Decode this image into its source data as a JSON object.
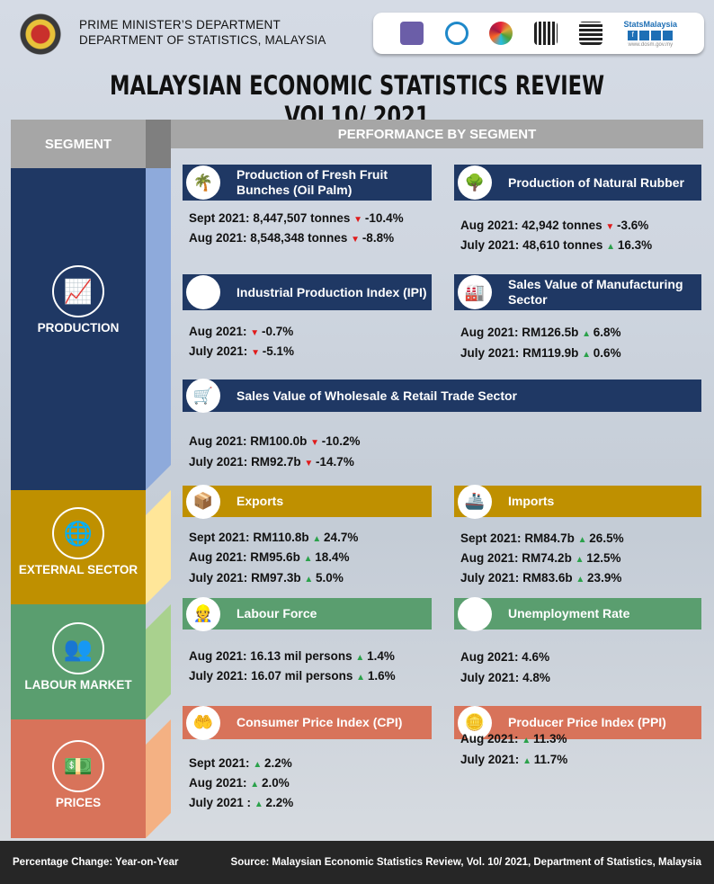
{
  "header": {
    "org_line1": "PRIME MINISTER’S DEPARTMENT",
    "org_line2": "DEPARTMENT  OF STATISTICS, MALAYSIA",
    "logo_brand": "StatsMalaysia",
    "logo_url": "www.dosm.gov.my",
    "title": "MALAYSIAN ECONOMIC STATISTICS REVIEW VOL10/ 2021"
  },
  "columns": {
    "segment": "SEGMENT",
    "performance": "PERFORMANCE BY SEGMENT"
  },
  "colors": {
    "production": "#1f3864",
    "external": "#bf9000",
    "labour": "#5a9e6f",
    "prices": "#d8735a"
  },
  "segments": [
    {
      "key": "production",
      "label": "PRODUCTION",
      "icon": "chart-icon"
    },
    {
      "key": "external",
      "label": "EXTERNAL SECTOR",
      "icon": "globe-icon"
    },
    {
      "key": "labour",
      "label": "LABOUR MARKET",
      "icon": "people-icon"
    },
    {
      "key": "prices",
      "label": "PRICES",
      "icon": "money-icon"
    }
  ],
  "cards": [
    {
      "segment": "production",
      "title": "Production of Fresh Fruit Bunches (Oil Palm)",
      "icon": "palm-tree-icon",
      "rows": [
        {
          "period": "Sept 2021:",
          "value": "8,447,507  tonnes",
          "dir": "down",
          "change": "-10.4%"
        },
        {
          "period": "Aug 2021:",
          "value": "8,548,348  tonnes",
          "dir": "down",
          "change": "-8.8%"
        }
      ]
    },
    {
      "segment": "production",
      "title": "Production of Natural Rubber",
      "icon": "rubber-tapper-icon",
      "rows": [
        {
          "period": "Aug 2021:",
          "value": "42,942  tonnes",
          "dir": "down",
          "change": "-3.6%"
        },
        {
          "period": "July 2021:",
          "value": "48,610  tonnes",
          "dir": "up",
          "change": "16.3%"
        }
      ]
    },
    {
      "segment": "production",
      "title": "Industrial Production Index (IPI)",
      "icon": "factory-gear-icon",
      "rows": [
        {
          "period": "Aug 2021:",
          "value": "",
          "dir": "down",
          "change": "-0.7%"
        },
        {
          "period": "July 2021:",
          "value": "",
          "dir": "down",
          "change": "-5.1%"
        }
      ]
    },
    {
      "segment": "production",
      "title": "Sales Value of Manufacturing Sector",
      "icon": "factory-icon",
      "rows": [
        {
          "period": "Aug 2021:",
          "value": "RM126.5b",
          "dir": "up",
          "change": "6.8%"
        },
        {
          "period": "July 2021:",
          "value": "RM119.9b",
          "dir": "up",
          "change": "0.6%"
        }
      ]
    },
    {
      "segment": "production",
      "title": "Sales Value of Wholesale & Retail Trade Sector",
      "icon": "shopping-cart-icon",
      "rows": [
        {
          "period": "Aug 2021:",
          "value": "RM100.0b",
          "dir": "down",
          "change": "-10.2%"
        },
        {
          "period": "July 2021:",
          "value": "RM92.7b",
          "dir": "down",
          "change": "-14.7%"
        }
      ]
    },
    {
      "segment": "external",
      "title": "Exports",
      "icon": "cargo-box-icon",
      "rows": [
        {
          "period": "Sept 2021:",
          "value": "RM110.8b",
          "dir": "up",
          "change": "24.7%"
        },
        {
          "period": "Aug 2021:",
          "value": "RM95.6b",
          "dir": "up",
          "change": "18.4%"
        },
        {
          "period": "July 2021:",
          "value": "RM97.3b",
          "dir": "up",
          "change": "5.0%"
        }
      ]
    },
    {
      "segment": "external",
      "title": "Imports",
      "icon": "cargo-ship-icon",
      "rows": [
        {
          "period": "Sept 2021:",
          "value": "RM84.7b",
          "dir": "up",
          "change": "26.5%"
        },
        {
          "period": "Aug 2021:",
          "value": "RM74.2b",
          "dir": "up",
          "change": "12.5%"
        },
        {
          "period": "July 2021:",
          "value": "RM83.6b",
          "dir": "up",
          "change": "23.9%"
        }
      ]
    },
    {
      "segment": "labour",
      "title": "Labour Force",
      "icon": "workers-icon",
      "rows": [
        {
          "period": "Aug 2021:",
          "value": "16.13 mil persons",
          "dir": "up",
          "change": "1.4%"
        },
        {
          "period": "July 2021:",
          "value": "16.07 mil persons",
          "dir": "up",
          "change": "1.6%"
        }
      ]
    },
    {
      "segment": "labour",
      "title": "Unemployment Rate",
      "icon": "unemployed-icon",
      "rows": [
        {
          "period": "Aug 2021:",
          "value": "4.6%",
          "dir": "",
          "change": ""
        },
        {
          "period": "July 2021:",
          "value": "4.8%",
          "dir": "",
          "change": ""
        }
      ]
    },
    {
      "segment": "prices",
      "title": "Consumer Price Index (CPI)",
      "icon": "hand-coin-icon",
      "rows": [
        {
          "period": "Sept 2021:",
          "value": "",
          "dir": "up",
          "change": "2.2%"
        },
        {
          "period": "Aug 2021:",
          "value": "",
          "dir": "up",
          "change": "2.0%"
        },
        {
          "period": "July 2021 :",
          "value": "",
          "dir": "up",
          "change": "2.2%"
        }
      ]
    },
    {
      "segment": "prices",
      "title": "Producer Price Index (PPI)",
      "icon": "coins-icon",
      "rows": [
        {
          "period": "Aug 2021:",
          "value": "",
          "dir": "up",
          "change": "11.3%"
        },
        {
          "period": "July 2021:",
          "value": "",
          "dir": "up",
          "change": "11.7%"
        }
      ]
    }
  ],
  "footer": {
    "left": "Percentage Change: Year-on-Year",
    "right": "Source: Malaysian Economic Statistics Review, Vol. 10/ 2021, Department of Statistics, Malaysia"
  }
}
